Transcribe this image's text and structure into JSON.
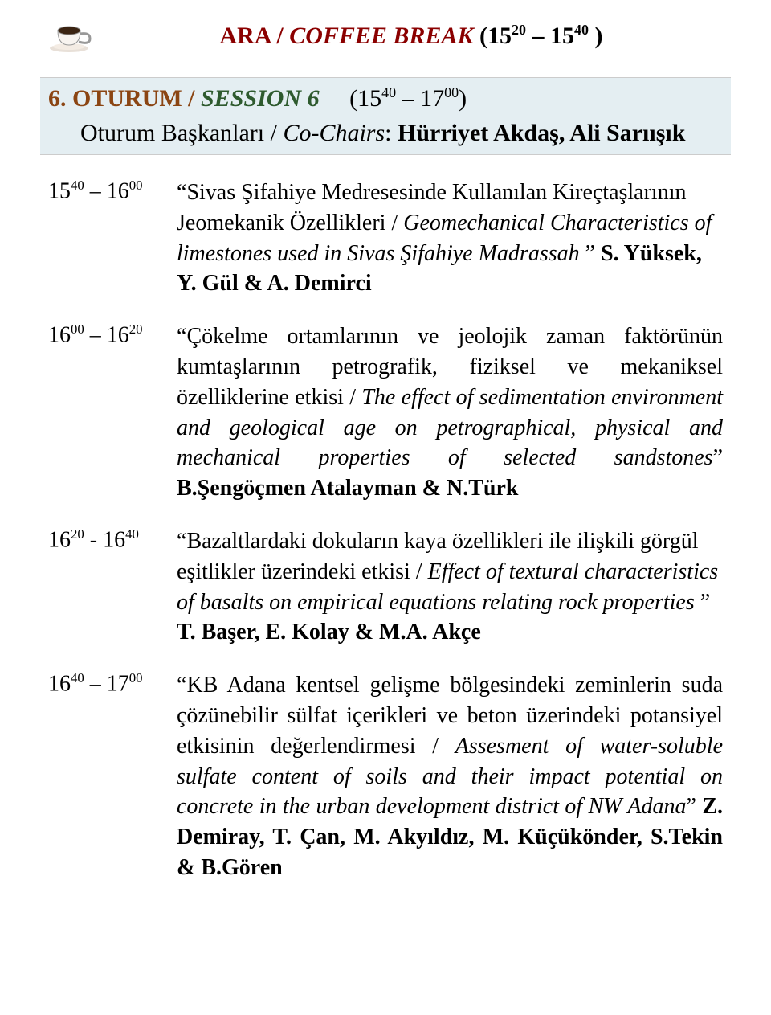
{
  "colors": {
    "red": "#8b0000",
    "brown": "#8b4513",
    "green": "#2e5a2e",
    "session_bg": "#e4eef2",
    "text": "#000000",
    "bg": "#ffffff"
  },
  "fonts": {
    "family": "Times New Roman",
    "break_size_pt": 22,
    "session_size_pt": 22,
    "body_size_pt": 21
  },
  "break": {
    "ara": "ARA / ",
    "coffee_break": "COFFEE BREAK",
    "time_open": "  (15",
    "time_sup1": "20",
    "time_mid": " – 15",
    "time_sup2": "40",
    "time_close": " )"
  },
  "session": {
    "oturum": "6. OTURUM / ",
    "session": "SESSION 6",
    "time_open": "     (15",
    "time_sup1": "40",
    "time_mid": " – 17",
    "time_sup2": "00",
    "time_close": ")",
    "chairs_label": "Oturum Başkanları / ",
    "chairs_label_it": "Co-Chairs",
    "chairs_sep": ": ",
    "chairs_names": "Hürriyet Akdaş, Ali Sarıışık"
  },
  "entries": [
    {
      "time_a": "15",
      "time_a_sup": "40",
      "time_sep": " – ",
      "time_b": "16",
      "time_b_sup": "00",
      "open_quote": "“",
      "tr": "Sivas Şifahiye Medresesinde Kullanılan Kireçtaşlarının Jeomekanik Özellikleri / ",
      "en": "Geomechanical Characteristics of limestones used in Sivas Şifahiye Madrassah ",
      "close_quote": "” ",
      "authors": "S. Yüksek, Y. Gül & A. Demirci",
      "align": "left"
    },
    {
      "time_a": "16",
      "time_a_sup": "00",
      "time_sep": " – ",
      "time_b": "16",
      "time_b_sup": "20",
      "open_quote": "“",
      "tr": "Çökelme ortamlarının ve jeolojik zaman faktörünün kumtaşlarının petrografik, fiziksel ve mekaniksel özelliklerine etkisi / ",
      "en": "The effect of sedimentation environment and geological age on petrographical, physical and mechanical properties of selected sandstones",
      "close_quote": "” ",
      "authors": "B.Şengöçmen Atalayman & N.Türk",
      "align": "justify"
    },
    {
      "time_a": "16",
      "time_a_sup": "20",
      "time_sep": " - ",
      "time_b": "16",
      "time_b_sup": "40",
      "open_quote": "“",
      "tr": "Bazaltlardaki dokuların kaya özellikleri ile ilişkili görgül eşitlikler üzerindeki etkisi / ",
      "en": "Effect of textural characteristics of basalts on empirical equations relating rock properties ",
      "close_quote": "” ",
      "authors": "T. Başer, E. Kolay & M.A. Akçe",
      "align": "left"
    },
    {
      "time_a": "16",
      "time_a_sup": "40",
      "time_sep": " – ",
      "time_b": "17",
      "time_b_sup": "00",
      "open_quote": "“",
      "tr": "KB Adana kentsel gelişme bölgesindeki zeminlerin suda çözünebilir sülfat içerikleri ve beton üzerindeki potansiyel etkisinin değerlendirmesi / ",
      "en": "Assesment of water-soluble sulfate content of soils and their impact potential on concrete in the urban development district of NW Adana",
      "close_quote": "” ",
      "authors": "Z. Demiray, T. Çan, M. Akyıldız, M. Küçükönder, S.Tekin & B.Gören",
      "align": "justify"
    }
  ]
}
